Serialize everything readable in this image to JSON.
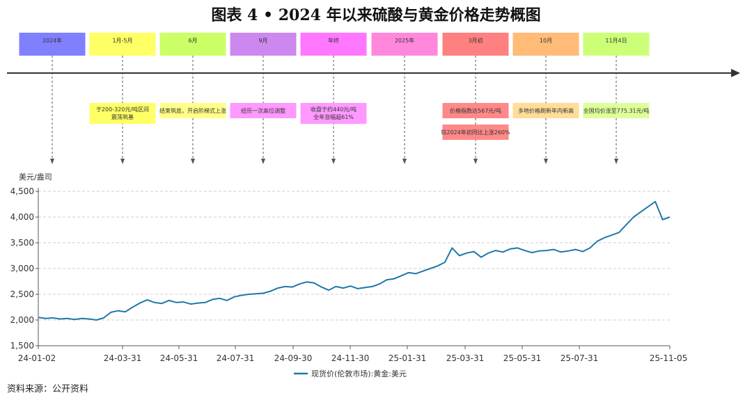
{
  "title": "图表 4 • 2024 年以来硫酸与黄金价格走势概图",
  "source": "资料来源：公开资料",
  "timeline": {
    "labels": [
      "2024年",
      "1月-5月",
      "6月",
      "9月",
      "年终",
      "2025年",
      "3月初",
      "10月",
      "11月4日"
    ],
    "colors": [
      "#8080ff",
      "#ffff66",
      "#ccff66",
      "#cc88ee",
      "#ff77ff",
      "#ff88dd",
      "#ff8080",
      "#ffbb77",
      "#ccff77"
    ],
    "notes": [
      {
        "col": 1,
        "lines": [
          "于200-320元/吨区间",
          "震荡筑基"
        ],
        "color": "#ffff66"
      },
      {
        "col": 2,
        "lines": [
          "结束筑底，开启阶梯式上涨"
        ],
        "color": "#ffff88"
      },
      {
        "col": 3,
        "lines": [
          "经历一次高位调整"
        ],
        "color": "#ff99ff"
      },
      {
        "col": 4,
        "lines": [
          "收盘于约440元/吨",
          "全年涨幅超61%"
        ],
        "color": "#ff99ff"
      },
      {
        "col": 6,
        "lines": [
          "价格指数达567元/吨"
        ],
        "color": "#ff8888"
      },
      {
        "col": 6,
        "lines": [
          "较2024年初同比上涨260%"
        ],
        "color": "#ff8888",
        "row": 2
      },
      {
        "col": 7,
        "lines": [
          "多地价格刷新年内新高"
        ],
        "color": "#ffdd99"
      },
      {
        "col": 8,
        "lines": [
          "全国均价涨至775.31元/吨"
        ],
        "color": "#ddff99"
      }
    ]
  },
  "chart_data": {
    "type": "line",
    "ylabel": "美元/盎司",
    "ylim": [
      1500,
      4500
    ],
    "yticks": [
      "1,500",
      "2,000",
      "2,500",
      "3,000",
      "3,500",
      "4,000",
      "4,500"
    ],
    "xticks": [
      "24-01-02",
      "24-03-31",
      "24-05-31",
      "24-07-31",
      "24-09-30",
      "24-11-30",
      "25-01-31",
      "25-03-31",
      "25-05-31",
      "25-07-31",
      "25-11-05"
    ],
    "grid": true,
    "legend": "bottom",
    "series": [
      {
        "name": "现货价(伦敦市场):黄金:美元",
        "color": "#1f77a8",
        "values": [
          2050,
          2030,
          2040,
          2020,
          2030,
          2010,
          2030,
          2020,
          2000,
          2040,
          2150,
          2180,
          2160,
          2250,
          2330,
          2390,
          2340,
          2320,
          2380,
          2340,
          2350,
          2310,
          2330,
          2340,
          2400,
          2420,
          2380,
          2450,
          2480,
          2500,
          2510,
          2520,
          2560,
          2620,
          2650,
          2640,
          2700,
          2740,
          2720,
          2640,
          2580,
          2650,
          2620,
          2660,
          2610,
          2630,
          2650,
          2700,
          2780,
          2800,
          2860,
          2920,
          2900,
          2950,
          3000,
          3050,
          3120,
          3400,
          3250,
          3300,
          3330,
          3220,
          3300,
          3350,
          3320,
          3380,
          3400,
          3350,
          3310,
          3340,
          3350,
          3370,
          3320,
          3340,
          3370,
          3330,
          3400,
          3530,
          3600,
          3650,
          3700,
          3850,
          4000,
          4100,
          4200,
          4300,
          3950,
          4000
        ]
      }
    ]
  }
}
